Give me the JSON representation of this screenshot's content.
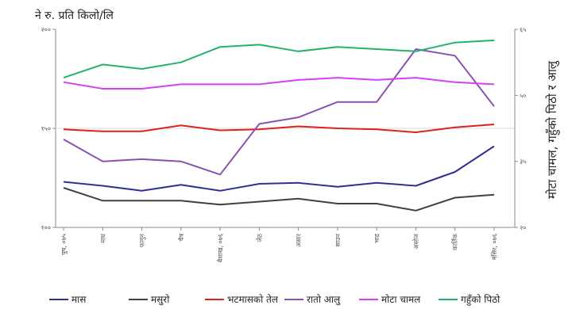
{
  "chart_data": {
    "type": "line",
    "unit_label": "ने रु. प्रति किलो/लि",
    "right_axis_label": "मोटा चामल, गहुँको पिठो र आलु",
    "left_axis_label": "",
    "categories": [
      "पुष, ०७५",
      "माघ",
      "फागुन",
      "चैत्र",
      "बैशाख, ०७६",
      "जेठ",
      "असार",
      "साउन",
      "भाद्र",
      "असोज",
      "कार्तिक",
      "मंसिर, ०७६"
    ],
    "y_left": {
      "ylim": [
        100,
        200
      ],
      "ticks": [
        "१००",
        "१५०",
        "२००"
      ],
      "tick_values": [
        100,
        150,
        200
      ]
    },
    "y_right": {
      "ylim": [
        20,
        65
      ],
      "ticks": [
        "२०",
        "३५",
        "५०",
        "६५"
      ],
      "tick_values": [
        20,
        35,
        50,
        65
      ]
    },
    "series": [
      {
        "name": "मास",
        "color": "#2e3192",
        "axis": "left",
        "values": [
          123,
          121,
          118.5,
          121.5,
          118.5,
          122,
          122.5,
          120.5,
          122.5,
          121,
          128,
          141
        ]
      },
      {
        "name": "मसुरो",
        "color": "#404040",
        "axis": "left",
        "values": [
          120,
          113.5,
          113.5,
          113.5,
          111.5,
          113,
          114.5,
          112,
          112,
          108.5,
          115,
          116.5
        ]
      },
      {
        "name": "भटमासको तेल",
        "color": "#e0211d",
        "axis": "left",
        "values": [
          149.5,
          148.5,
          148.5,
          151.5,
          149,
          149.5,
          151,
          150,
          149.5,
          148,
          150.5,
          152
        ]
      },
      {
        "name": "रातो आलु",
        "color": "#8a50b4",
        "axis": "right",
        "values": [
          40,
          35,
          35.5,
          35,
          32,
          43.5,
          45,
          48.5,
          48.5,
          60.5,
          59,
          47.5
        ]
      },
      {
        "name": "मोटा चामल",
        "color": "#d63ff2",
        "axis": "right",
        "values": [
          53,
          51.5,
          51.5,
          52.5,
          52.5,
          52.5,
          53.5,
          54,
          53.5,
          54,
          53,
          52.5
        ]
      },
      {
        "name": "गहुँको पिठो",
        "color": "#22b26b",
        "axis": "right",
        "values": [
          54,
          57,
          56,
          57.5,
          61,
          61.5,
          60,
          61,
          60.5,
          60,
          62,
          62.5
        ]
      }
    ]
  }
}
